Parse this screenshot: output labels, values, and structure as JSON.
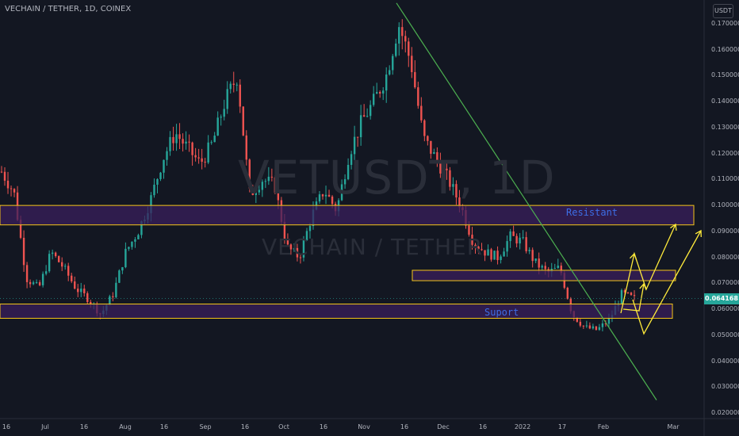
{
  "header": {
    "symbol_title": "VECHAIN / TETHER, 1D, COINEX"
  },
  "price_axis": {
    "unit": "USDT",
    "current_price": "0.064168"
  },
  "watermark": {
    "main": "VETUSDT, 1D",
    "sub": "VECHAIN / TETHER"
  },
  "colors": {
    "background": "#131722",
    "up": "#26a69a",
    "down": "#ef5350",
    "zone_fill": "#3a1f5c",
    "zone_border": "#f5c518",
    "trendline": "#4caf50",
    "arrows": "#ffeb3b"
  },
  "chart_data": {
    "type": "candlestick",
    "ylim": [
      0.018,
      0.178
    ],
    "y_ticks": [
      "0.170000",
      "0.160000",
      "0.150000",
      "0.140000",
      "0.130000",
      "0.120000",
      "0.110000",
      "0.100000",
      "0.090000",
      "0.080000",
      "0.070000",
      "0.060000",
      "0.050000",
      "0.040000",
      "0.030000",
      "0.020000"
    ],
    "x_ticks": [
      "16",
      "Jul",
      "16",
      "Aug",
      "16",
      "Sep",
      "16",
      "Oct",
      "16",
      "Nov",
      "16",
      "Dec",
      "16",
      "2022",
      "17",
      "Feb",
      "Mar"
    ],
    "close_path": [
      0.113,
      0.105,
      0.072,
      0.068,
      0.082,
      0.076,
      0.068,
      0.064,
      0.058,
      0.066,
      0.082,
      0.09,
      0.102,
      0.118,
      0.128,
      0.122,
      0.116,
      0.124,
      0.14,
      0.15,
      0.104,
      0.11,
      0.108,
      0.084,
      0.08,
      0.096,
      0.106,
      0.098,
      0.12,
      0.132,
      0.14,
      0.15,
      0.17,
      0.155,
      0.126,
      0.118,
      0.11,
      0.1,
      0.086,
      0.082,
      0.08,
      0.088,
      0.086,
      0.078,
      0.074,
      0.076,
      0.058,
      0.053,
      0.052,
      0.056,
      0.066,
      0.064
    ],
    "zones": [
      {
        "name": "Resistant",
        "low": 0.0925,
        "high": 0.1
      },
      {
        "name": "",
        "low": 0.071,
        "high": 0.075
      },
      {
        "name": "Suport",
        "low": 0.0565,
        "high": 0.062
      }
    ],
    "trendline": {
      "from_price": 0.178,
      "to_price": 0.025
    },
    "annotations": [
      "Resistant",
      "Suport"
    ]
  }
}
